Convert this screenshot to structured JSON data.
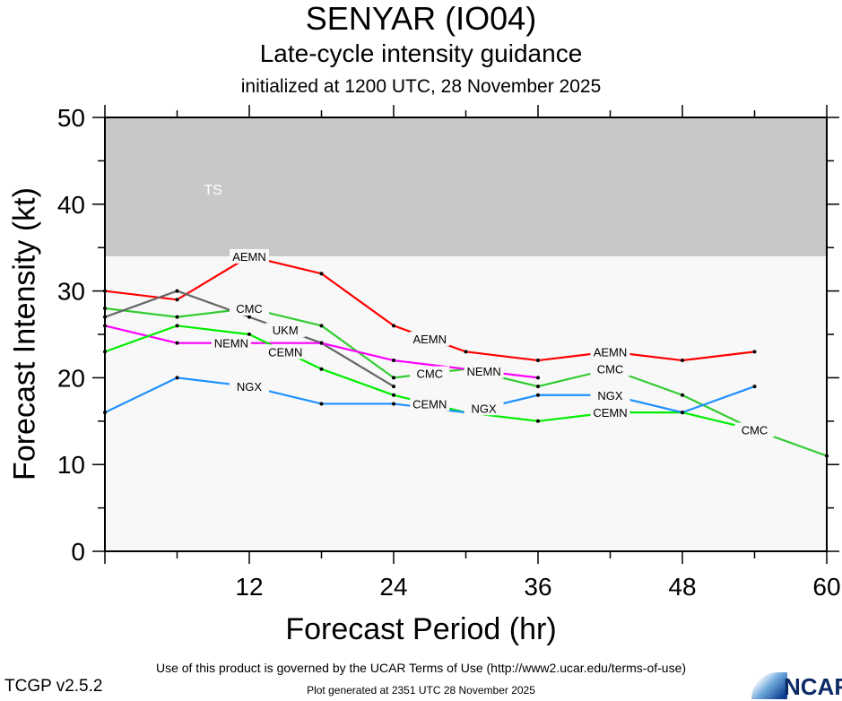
{
  "chart_data": {
    "type": "line",
    "title": "SENYAR (IO04)",
    "subtitle": "Late-cycle intensity guidance",
    "subtitle2": "initialized at 1200 UTC, 28 November 2025",
    "xlabel": "Forecast Period (hr)",
    "ylabel": "Forecast Intensity (kt)",
    "xlim": [
      0,
      60
    ],
    "ylim": [
      0,
      50
    ],
    "xticks": [
      12,
      24,
      36,
      48,
      60
    ],
    "yticks": [
      0,
      10,
      20,
      30,
      40,
      50
    ],
    "x": [
      0,
      6,
      12,
      18,
      24,
      30,
      36,
      42,
      48,
      54,
      60
    ],
    "bands": [
      {
        "name": "TS",
        "from": 34,
        "to": 50,
        "color": "#c8c8c8"
      }
    ],
    "plot_background": "#f8f8f8",
    "series": [
      {
        "name": "AEMN",
        "color": "#ff0000",
        "values": [
          30,
          29,
          34,
          32,
          26,
          23,
          22,
          23,
          22,
          23,
          null
        ]
      },
      {
        "name": "CMC",
        "color": "#33cc33",
        "values": [
          28,
          27,
          28,
          26,
          20,
          21,
          19,
          21,
          18,
          14,
          11
        ]
      },
      {
        "name": "UKM",
        "color": "#666666",
        "values": [
          27,
          30,
          27,
          24,
          19,
          null,
          null,
          null,
          null,
          null,
          null
        ]
      },
      {
        "name": "NEMN",
        "color": "#ff00ff",
        "values": [
          26,
          24,
          24,
          24,
          22,
          21,
          20,
          null,
          null,
          null,
          null
        ]
      },
      {
        "name": "CEMN",
        "color": "#00ee00",
        "values": [
          23,
          26,
          25,
          21,
          18,
          16,
          15,
          16,
          16,
          14,
          null
        ]
      },
      {
        "name": "NGX",
        "color": "#1e90ff",
        "values": [
          16,
          20,
          19,
          17,
          17,
          16,
          18,
          18,
          16,
          19,
          null
        ]
      }
    ]
  },
  "footer": {
    "terms": "Use of this product is governed by the UCAR Terms of Use (http://www2.ucar.edu/terms-of-use)",
    "version": "TCGP v2.5.2",
    "generated": "Plot generated at 2351 UTC   28 November 2025",
    "logo": "NCAR"
  }
}
